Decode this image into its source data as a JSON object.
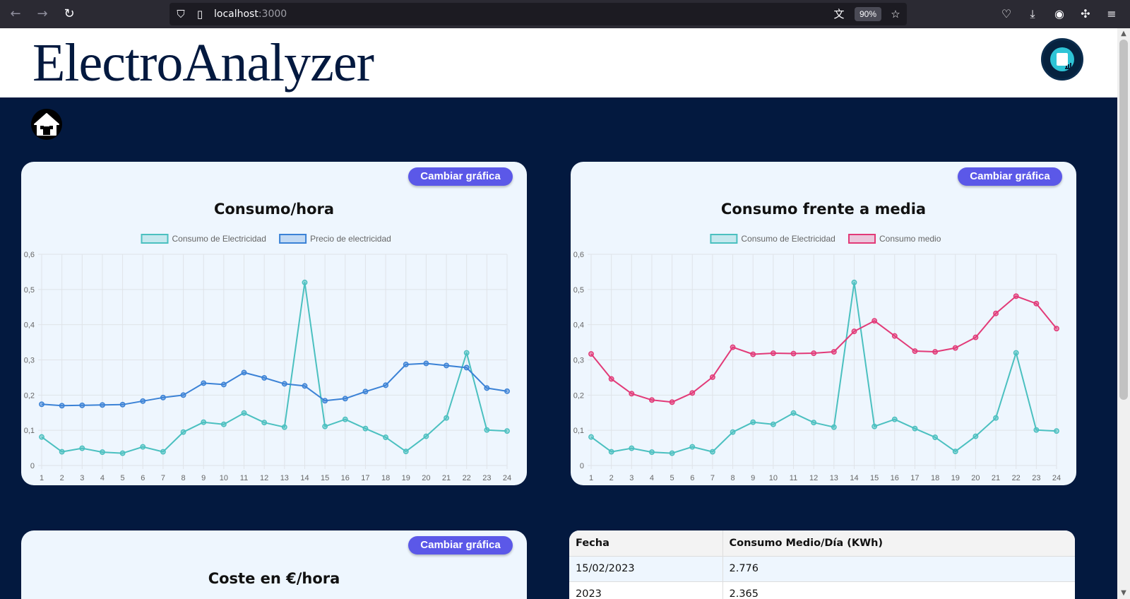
{
  "browser": {
    "url_host": "localhost",
    "url_port": ":3000",
    "zoom": "90%",
    "icons": [
      "back-arrow-icon",
      "forward-arrow-icon",
      "reload-icon",
      "shield-icon",
      "page-icon",
      "translate-icon",
      "star-icon",
      "pocket-icon",
      "download-icon",
      "account-icon",
      "extensions-icon",
      "menu-icon"
    ]
  },
  "header": {
    "title": "ElectroAnalyzer",
    "logo_icon": "analytics-logo-icon"
  },
  "home": {
    "icon": "home-icon"
  },
  "colors": {
    "navy": "#03193f",
    "button": "#5b58e8",
    "teal": "#4bc0c0",
    "blue": "#3b82d6",
    "pink": "#e23a78"
  },
  "cards": [
    {
      "title": "Consumo/hora",
      "button": "Cambiar gráfica"
    },
    {
      "title": "Consumo frente a media",
      "button": "Cambiar gráfica"
    },
    {
      "title": "Coste en €/hora",
      "button": "Cambiar gráfica"
    }
  ],
  "chart_data": [
    {
      "type": "line",
      "title": "Consumo/hora",
      "x": [
        1,
        2,
        3,
        4,
        5,
        6,
        7,
        8,
        9,
        10,
        11,
        12,
        13,
        14,
        15,
        16,
        17,
        18,
        19,
        20,
        21,
        22,
        23,
        24
      ],
      "ylim": [
        0,
        0.6
      ],
      "yticks": [
        "0",
        "0,1",
        "0,2",
        "0,3",
        "0,4",
        "0,5",
        "0,6"
      ],
      "grid": true,
      "legend_position": "top",
      "series": [
        {
          "name": "Consumo de Electricidad",
          "color": "#4bc0c0",
          "values": [
            0.081,
            0.039,
            0.049,
            0.038,
            0.035,
            0.053,
            0.039,
            0.095,
            0.123,
            0.117,
            0.149,
            0.122,
            0.109,
            0.52,
            0.111,
            0.131,
            0.105,
            0.08,
            0.04,
            0.083,
            0.135,
            0.32,
            0.101,
            0.098
          ]
        },
        {
          "name": "Precio de electricidad",
          "color": "#3b82d6",
          "values": [
            0.174,
            0.17,
            0.171,
            0.172,
            0.173,
            0.183,
            0.193,
            0.2,
            0.234,
            0.23,
            0.264,
            0.249,
            0.232,
            0.226,
            0.184,
            0.19,
            0.21,
            0.228,
            0.287,
            0.29,
            0.284,
            0.278,
            0.22,
            0.211
          ]
        }
      ]
    },
    {
      "type": "line",
      "title": "Consumo frente a media",
      "x": [
        1,
        2,
        3,
        4,
        5,
        6,
        7,
        8,
        9,
        10,
        11,
        12,
        13,
        14,
        15,
        16,
        17,
        18,
        19,
        20,
        21,
        22,
        23,
        24
      ],
      "ylim": [
        0,
        0.6
      ],
      "yticks": [
        "0",
        "0,1",
        "0,2",
        "0,3",
        "0,4",
        "0,5",
        "0,6"
      ],
      "grid": true,
      "legend_position": "top",
      "series": [
        {
          "name": "Consumo de Electricidad",
          "color": "#4bc0c0",
          "values": [
            0.081,
            0.039,
            0.049,
            0.038,
            0.035,
            0.053,
            0.039,
            0.095,
            0.123,
            0.117,
            0.149,
            0.122,
            0.109,
            0.52,
            0.111,
            0.131,
            0.105,
            0.08,
            0.04,
            0.083,
            0.135,
            0.32,
            0.101,
            0.098
          ]
        },
        {
          "name": "Consumo medio",
          "color": "#e23a78",
          "values": [
            0.317,
            0.246,
            0.204,
            0.186,
            0.18,
            0.206,
            0.251,
            0.336,
            0.316,
            0.319,
            0.318,
            0.319,
            0.323,
            0.381,
            0.411,
            0.368,
            0.325,
            0.323,
            0.334,
            0.364,
            0.432,
            0.481,
            0.46,
            0.389
          ]
        }
      ]
    }
  ],
  "table": {
    "headers": [
      "Fecha",
      "Consumo Medio/Día (KWh)"
    ],
    "rows": [
      [
        "15/02/2023",
        "2.776"
      ],
      [
        "2023",
        "2.365"
      ]
    ]
  }
}
